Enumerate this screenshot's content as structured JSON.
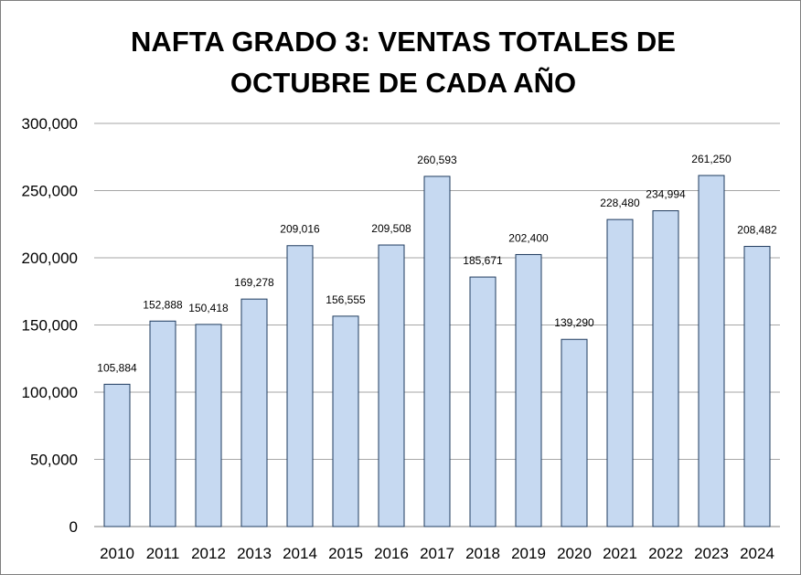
{
  "chart_data": {
    "type": "bar",
    "title": "NAFTA GRADO 3: VENTAS TOTALES DE OCTUBRE DE CADA AÑO",
    "categories": [
      "2010",
      "2011",
      "2012",
      "2013",
      "2014",
      "2015",
      "2016",
      "2017",
      "2018",
      "2019",
      "2020",
      "2021",
      "2022",
      "2023",
      "2024"
    ],
    "values": [
      105884,
      152888,
      150418,
      169278,
      209016,
      156555,
      209508,
      260593,
      185671,
      202400,
      139290,
      228480,
      234994,
      261250,
      208482
    ],
    "data_labels": [
      "105,884",
      "152,888",
      "150,418",
      "169,278",
      "209,016",
      "156,555",
      "209,508",
      "260,593",
      "185,671",
      "202,400",
      "139,290",
      "228,480",
      "234,994",
      "261,250",
      "208,482"
    ],
    "y_ticks": [
      "0",
      "50,000",
      "100,000",
      "150,000",
      "200,000",
      "250,000",
      "300,000"
    ],
    "ylim": [
      0,
      300000
    ],
    "xlabel": "",
    "ylabel": "",
    "grid": true,
    "legend": "none",
    "bar_color": "#c6d9f1",
    "bar_border": "#1f3b5e"
  }
}
